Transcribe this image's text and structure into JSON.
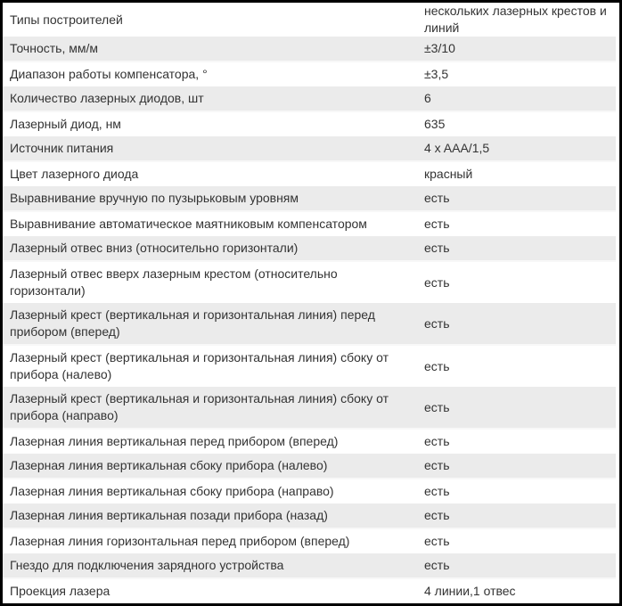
{
  "table": {
    "name": "laser-level-specifications",
    "columns": [
      "parameter",
      "value"
    ],
    "rows": [
      {
        "label": "Типы построителей",
        "value": "нескольких лазерных крестов и линий"
      },
      {
        "label": "Точность, мм/м",
        "value": "±3/10"
      },
      {
        "label": "Диапазон работы компенсатора, °",
        "value": "±3,5"
      },
      {
        "label": "Количество лазерных диодов, шт",
        "value": "6"
      },
      {
        "label": "Лазерный диод, нм",
        "value": "635"
      },
      {
        "label": "Источник питания",
        "value": "4 x AAA/1,5"
      },
      {
        "label": "Цвет лазерного диода",
        "value": "красный"
      },
      {
        "label": "Выравнивание вручную по пузырьковым уровням",
        "value": "есть"
      },
      {
        "label": "Выравнивание автоматическое маятниковым компенсатором",
        "value": "есть"
      },
      {
        "label": "Лазерный отвес вниз (относительно горизонтали)",
        "value": "есть"
      },
      {
        "label": "Лазерный отвес вверх лазерным крестом (относительно горизонтали)",
        "value": "есть"
      },
      {
        "label": "Лазерный крест (вертикальная и горизонтальная линия) перед прибором (вперед)",
        "value": "есть"
      },
      {
        "label": "Лазерный крест (вертикальная и горизонтальная линия) сбоку от прибора (налево)",
        "value": "есть"
      },
      {
        "label": "Лазерный крест (вертикальная и горизонтальная линия) сбоку от прибора (направо)",
        "value": "есть"
      },
      {
        "label": "Лазерная линия вертикальная перед прибором (вперед)",
        "value": "есть"
      },
      {
        "label": "Лазерная линия вертикальная сбоку прибора (налево)",
        "value": "есть"
      },
      {
        "label": "Лазерная линия вертикальная сбоку прибора (направо)",
        "value": "есть"
      },
      {
        "label": "Лазерная линия вертикальная позади прибора (назад)",
        "value": "есть"
      },
      {
        "label": "Лазерная линия горизонтальная перед прибором (вперед)",
        "value": "есть"
      },
      {
        "label": "Гнездо для подключения зарядного устройства",
        "value": "есть"
      },
      {
        "label": "Проекция лазера",
        "value": "4 линии,1 отвес"
      }
    ]
  },
  "colors": {
    "row_bg": "#ffffff",
    "row_alt_bg": "#ebebeb",
    "row_separator": "#f8f8f8",
    "text": "#333333",
    "outer_border": "#000000"
  }
}
